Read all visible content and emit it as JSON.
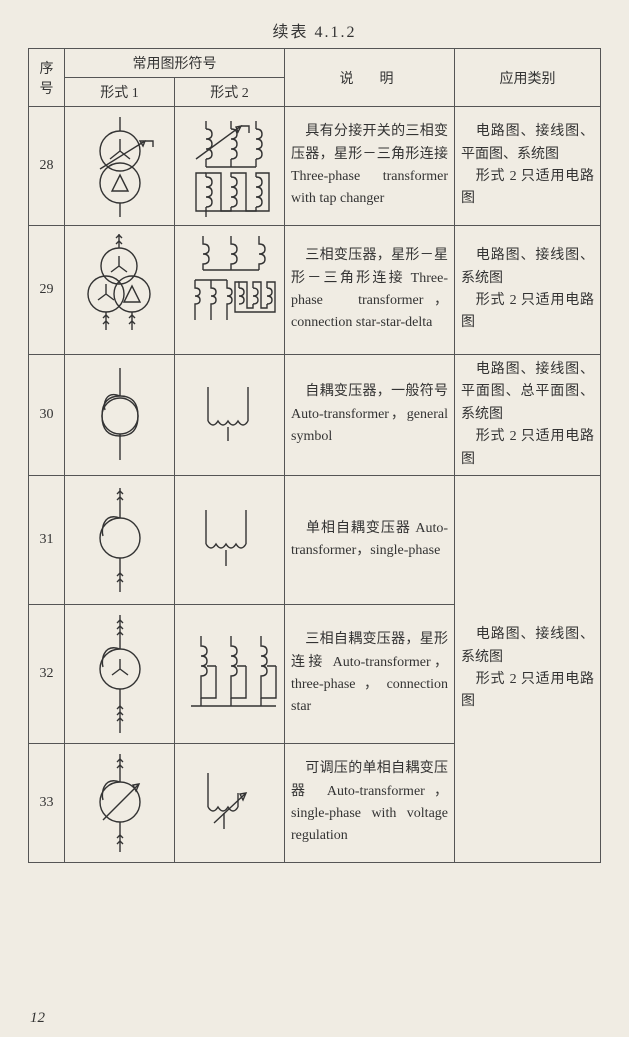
{
  "title": "续表 4.1.2",
  "page_number": "12",
  "headers": {
    "idx": "序号",
    "symbols": "常用图形符号",
    "form1": "形式 1",
    "form2": "形式 2",
    "desc": "说　明",
    "app": "应用类别"
  },
  "rows": [
    {
      "idx": "28",
      "desc": "　具有分接开关的三相变压器，星形－三角形连接 Three-phase transformer with tap changer",
      "app": "　电路图、接线图、平面图、系统图\n　形式 2 只适用电路图"
    },
    {
      "idx": "29",
      "desc": "　三相变压器，星形－星形－三角形连接 Three-phase　trans­former，connection star-star-delta",
      "app": "　电路图、接线图、系统图\n　形式 2 只适用电路图"
    },
    {
      "idx": "30",
      "desc": "　自耦变压器，一般符号 Auto-transform­er，general symbol",
      "app": "　电路图、接线图、平面图、总平面图、系统图\n　形式 2 只适用电路图"
    },
    {
      "idx": "31",
      "desc": "　单相自耦变压器 Auto-transformer，single-phase",
      "app_group": "　电路图、接线图、系统图\n　形式 2 只适用电路图"
    },
    {
      "idx": "32",
      "desc": "　三相自耦变压器，星形连接 Auto-trans­former，three-phase，connection star"
    },
    {
      "idx": "33",
      "desc": "　可调压的单相自耦变压器 Auto-trans­former，single-phase with voltage regulation"
    }
  ],
  "symbols": {
    "stroke": "#333333",
    "bg": "#f0ece3"
  }
}
